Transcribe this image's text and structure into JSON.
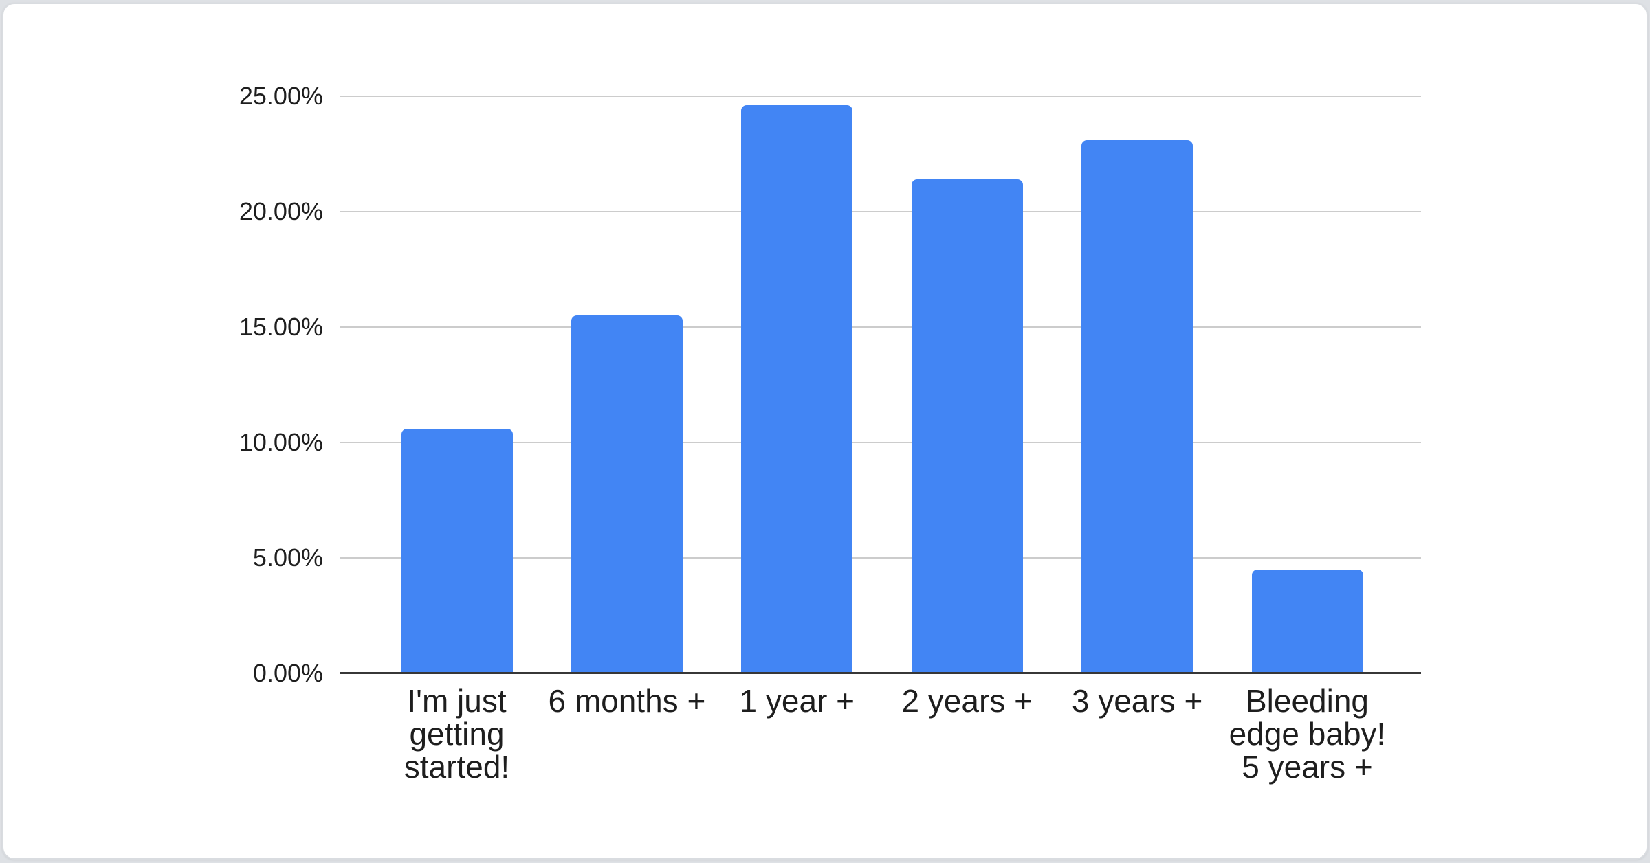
{
  "chart_data": {
    "type": "bar",
    "title": "",
    "categories": [
      "I'm just getting started!",
      "6 months +",
      "1 year +",
      "2 years +",
      "3 years +",
      "Bleeding edge baby! 5 years +"
    ],
    "category_lines": [
      [
        "I'm just",
        "getting",
        "started!"
      ],
      [
        "6 months +"
      ],
      [
        "1 year +"
      ],
      [
        "2 years +"
      ],
      [
        "3 years +"
      ],
      [
        "Bleeding",
        "edge baby!",
        "5 years +"
      ]
    ],
    "values": [
      10.6,
      15.5,
      24.6,
      21.4,
      23.1,
      4.5
    ],
    "value_unit": "%",
    "y_ticks": [
      {
        "label": "25.00%",
        "value": 25
      },
      {
        "label": "20.00%",
        "value": 20
      },
      {
        "label": "15.00%",
        "value": 15
      },
      {
        "label": "10.00%",
        "value": 10
      },
      {
        "label": "5.00%",
        "value": 5
      },
      {
        "label": "0.00%",
        "value": 0
      }
    ],
    "ylim": [
      0,
      25
    ],
    "grid": true,
    "legend": "none",
    "colors": {
      "bar": "#4285f4",
      "gridline": "#cccccc",
      "axis_line": "#373737",
      "label_text": "#1e1e1e",
      "card_background": "#ffffff",
      "card_border": "#d9dce0",
      "page_background": "#dee1e5"
    }
  }
}
